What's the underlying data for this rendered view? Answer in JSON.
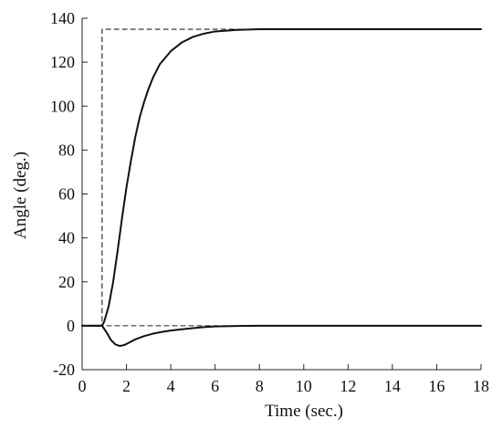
{
  "chart_data": {
    "type": "line",
    "title": "",
    "xlabel": "Time (sec.)",
    "ylabel": "Angle (deg.)",
    "xlim": [
      0,
      18
    ],
    "ylim": [
      -20,
      140
    ],
    "xticks": [
      0,
      2,
      4,
      6,
      8,
      10,
      12,
      14,
      16,
      18
    ],
    "yticks": [
      -20,
      0,
      20,
      40,
      60,
      80,
      100,
      120,
      140
    ],
    "grid": false,
    "legend": "none",
    "series": [
      {
        "style": "dashed",
        "color": "#222222",
        "x": [
          0,
          0.9,
          0.9,
          18
        ],
        "y": [
          0,
          0,
          135,
          135
        ]
      },
      {
        "style": "dashed",
        "color": "#222222",
        "x": [
          0,
          18
        ],
        "y": [
          0,
          0
        ]
      },
      {
        "style": "solid",
        "color": "#111111",
        "x": [
          0,
          0.9,
          1.0,
          1.2,
          1.4,
          1.6,
          1.8,
          2.0,
          2.2,
          2.4,
          2.6,
          2.8,
          3.0,
          3.2,
          3.5,
          4.0,
          4.5,
          5.0,
          5.5,
          6.0,
          7.0,
          8.0,
          9.0,
          10.0,
          12.0,
          18.0
        ],
        "y": [
          0,
          0,
          2,
          9,
          20,
          34,
          49,
          63,
          75,
          86,
          95,
          102,
          108,
          113,
          119,
          125,
          129,
          131.5,
          133,
          134,
          134.7,
          135,
          135,
          135,
          135,
          135
        ]
      },
      {
        "style": "solid",
        "color": "#111111",
        "x": [
          0,
          0.9,
          1.1,
          1.3,
          1.5,
          1.7,
          1.9,
          2.1,
          2.4,
          2.8,
          3.2,
          3.6,
          4.0,
          4.5,
          5.0,
          5.5,
          6.0,
          7.0,
          8.0,
          10.0,
          18.0
        ],
        "y": [
          0,
          0,
          -3,
          -6.5,
          -8.5,
          -9.2,
          -8.8,
          -7.8,
          -6.2,
          -4.7,
          -3.6,
          -2.8,
          -2.2,
          -1.6,
          -1.1,
          -0.6,
          -0.3,
          -0.1,
          0,
          0,
          0
        ]
      }
    ]
  }
}
